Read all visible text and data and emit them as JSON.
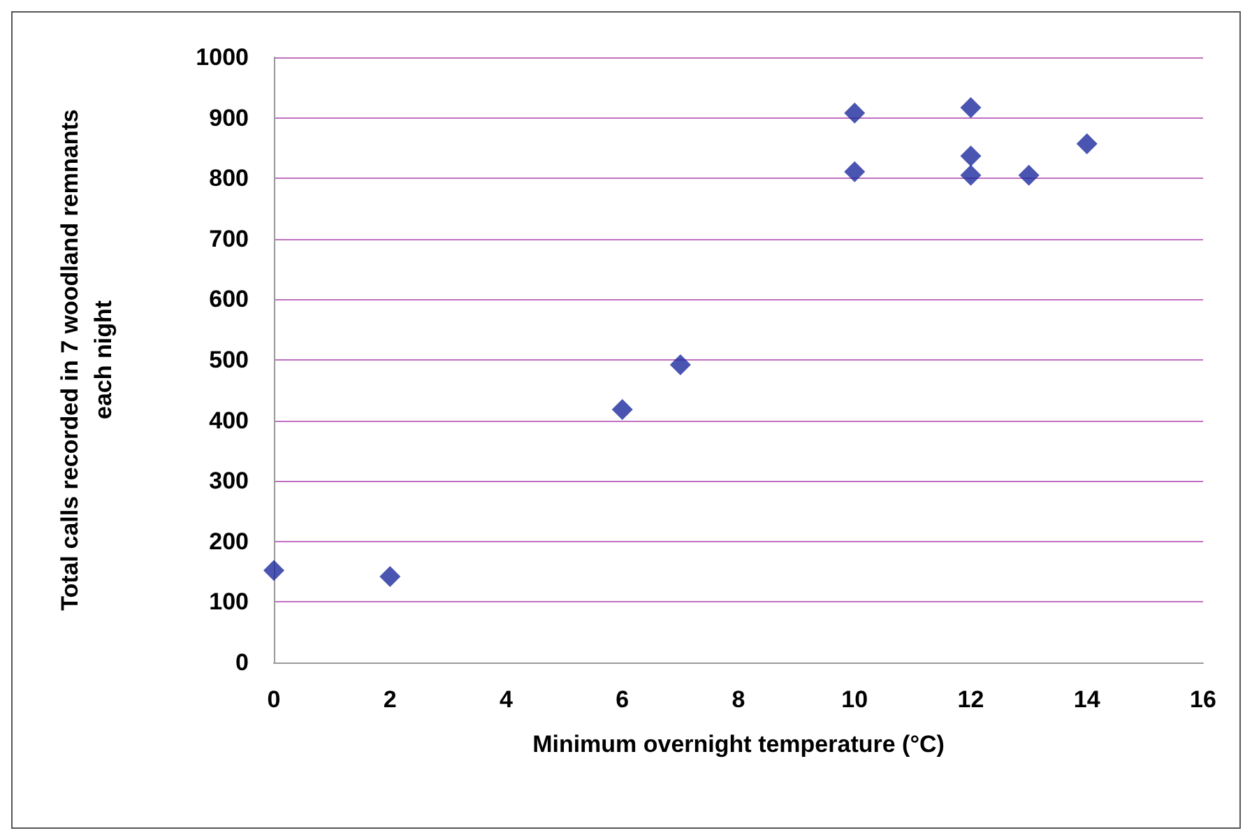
{
  "chart_data": {
    "type": "scatter",
    "xlabel": "Minimum overnight temperature (°C)",
    "ylabel": "Total calls recorded in 7 woodland remnants\neach night",
    "x": [
      0,
      2,
      6,
      7,
      10,
      10,
      12,
      12,
      12,
      13,
      14
    ],
    "series": [
      {
        "color": "#1c2a9c",
        "values": [
          152,
          142,
          418,
          492,
          908,
          811,
          917,
          837,
          805,
          805,
          857
        ]
      }
    ],
    "xlim": [
      0,
      16
    ],
    "xticks": [
      0,
      2,
      4,
      6,
      8,
      10,
      12,
      14,
      16
    ],
    "ylim": [
      0,
      1000
    ],
    "yticks": [
      0,
      100,
      200,
      300,
      400,
      500,
      600,
      700,
      800,
      900,
      1000
    ],
    "grid": "y",
    "marker": "diamond"
  }
}
